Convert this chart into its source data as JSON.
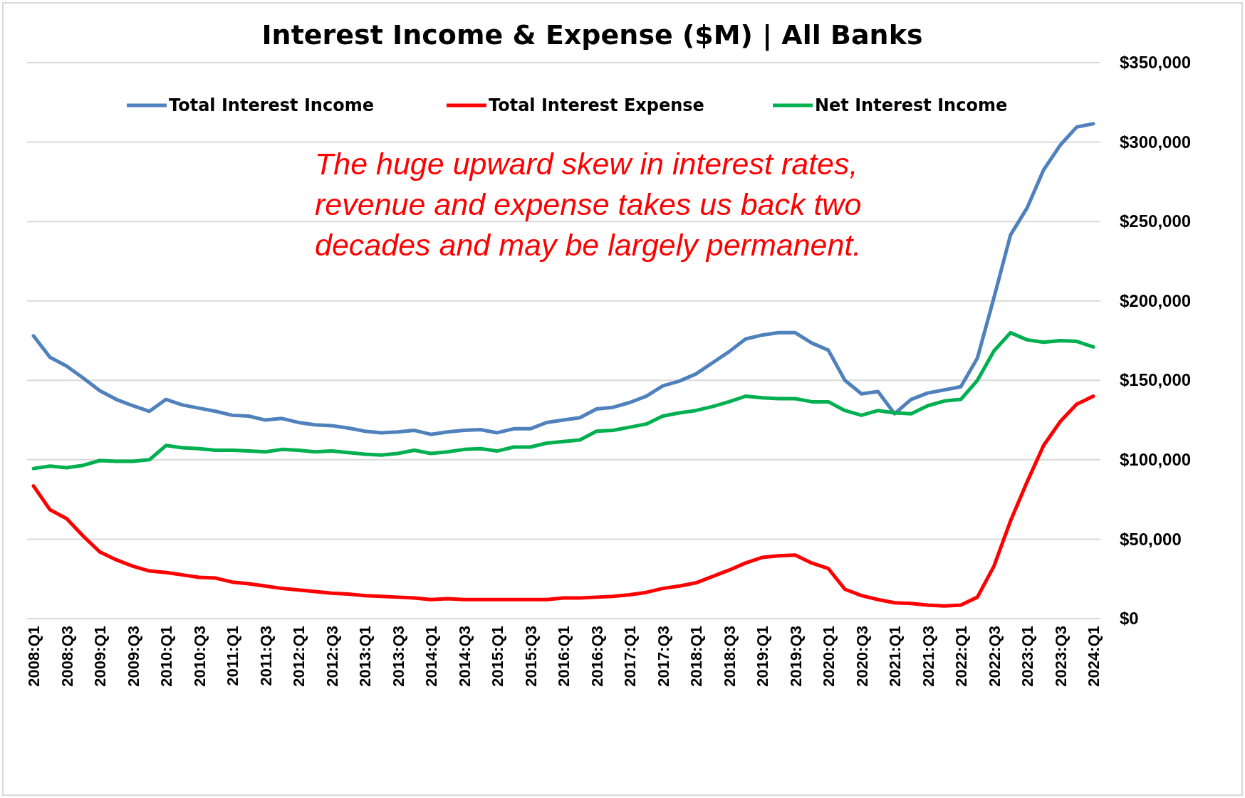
{
  "chart_data": {
    "type": "line",
    "title": "Interest Income & Expense ($M) | All Banks",
    "categories": [
      "2008:Q1",
      null,
      "2008:Q3",
      null,
      "2009:Q1",
      null,
      "2009:Q3",
      null,
      "2010:Q1",
      null,
      "2010:Q3",
      null,
      "2011:Q1",
      null,
      "2011:Q3",
      null,
      "2012:Q1",
      null,
      "2012:Q3",
      null,
      "2013:Q1",
      null,
      "2013:Q3",
      null,
      "2014:Q1",
      null,
      "2014:Q3",
      null,
      "2015:Q1",
      null,
      "2015:Q3",
      null,
      "2016:Q1",
      null,
      "2016:Q3",
      null,
      "2017:Q1",
      null,
      "2017:Q3",
      null,
      "2018:Q1",
      null,
      "2018:Q3",
      null,
      "2019:Q1",
      null,
      "2019:Q3",
      null,
      "2020:Q1",
      null,
      "2020:Q3",
      null,
      "2021:Q1",
      null,
      "2021:Q3",
      null,
      "2022:Q1",
      null,
      "2022:Q3",
      null,
      "2023:Q1",
      null,
      "2023:Q3",
      null,
      "2024:Q1"
    ],
    "series": [
      {
        "name": "Total Interest Income",
        "color": "#4f81bd",
        "values": [
          178000,
          164500,
          159000,
          151500,
          143500,
          138000,
          134000,
          130500,
          138000,
          134500,
          132500,
          130500,
          128000,
          127500,
          125000,
          126000,
          123500,
          122000,
          121500,
          120000,
          118000,
          117000,
          117500,
          118500,
          116000,
          117500,
          118500,
          119000,
          117000,
          119500,
          119500,
          123500,
          125000,
          126500,
          132000,
          133000,
          136000,
          140000,
          146500,
          149500,
          154000,
          161000,
          168000,
          176000,
          178500,
          180000,
          180000,
          173500,
          169000,
          150000,
          141500,
          143000,
          129000,
          138000,
          142000,
          144000,
          146000,
          164000,
          202000,
          241500,
          258500,
          282500,
          298000,
          309500,
          311500
        ]
      },
      {
        "name": "Total Interest Expense",
        "color": "#ff0000",
        "values": [
          83500,
          68500,
          63000,
          52000,
          42000,
          37000,
          33000,
          30000,
          29000,
          27500,
          26000,
          25500,
          23000,
          22000,
          20500,
          19000,
          18000,
          17000,
          16000,
          15500,
          14500,
          14000,
          13500,
          13000,
          12000,
          12500,
          12000,
          12000,
          12000,
          12000,
          12000,
          12000,
          13000,
          13000,
          13500,
          14000,
          15000,
          16500,
          19000,
          20500,
          22500,
          26500,
          30500,
          35000,
          38500,
          39500,
          40000,
          35000,
          31500,
          18500,
          14500,
          12000,
          10000,
          9500,
          8500,
          8000,
          8500,
          13500,
          33000,
          61500,
          86000,
          109000,
          124000,
          135000,
          140000
        ]
      },
      {
        "name": "Net Interest Income",
        "color": "#00b050",
        "values": [
          94500,
          96000,
          95000,
          96500,
          99500,
          99000,
          99000,
          100000,
          109000,
          107500,
          107000,
          106000,
          106000,
          105500,
          105000,
          106500,
          106000,
          105000,
          105500,
          104500,
          103500,
          103000,
          104000,
          106000,
          104000,
          105000,
          106500,
          107000,
          105500,
          108000,
          108000,
          110500,
          111500,
          112500,
          118000,
          118500,
          120500,
          122500,
          127500,
          129500,
          131000,
          133500,
          136500,
          140000,
          139000,
          138500,
          138500,
          136500,
          136500,
          131000,
          128000,
          131000,
          129500,
          129000,
          134000,
          137000,
          138000,
          150000,
          168500,
          180000,
          175500,
          174000,
          175000,
          174500,
          171000
        ]
      }
    ],
    "ylim": [
      0,
      350000
    ],
    "yticks": [
      {
        "value": 0,
        "label": "$0"
      },
      {
        "value": 50000,
        "label": "$50,000"
      },
      {
        "value": 100000,
        "label": "$100,000"
      },
      {
        "value": 150000,
        "label": "$150,000"
      },
      {
        "value": 200000,
        "label": "$200,000"
      },
      {
        "value": 250000,
        "label": "$250,000"
      },
      {
        "value": 300000,
        "label": "$300,000"
      },
      {
        "value": 350000,
        "label": "$350,000"
      }
    ],
    "grid": "y",
    "legend": "top",
    "marker": "none",
    "line_style": "solid",
    "annotations": [
      "The huge upward skew in interest rates,\nrevenue and expense takes us back two\ndecades and may be largely permanent."
    ]
  }
}
